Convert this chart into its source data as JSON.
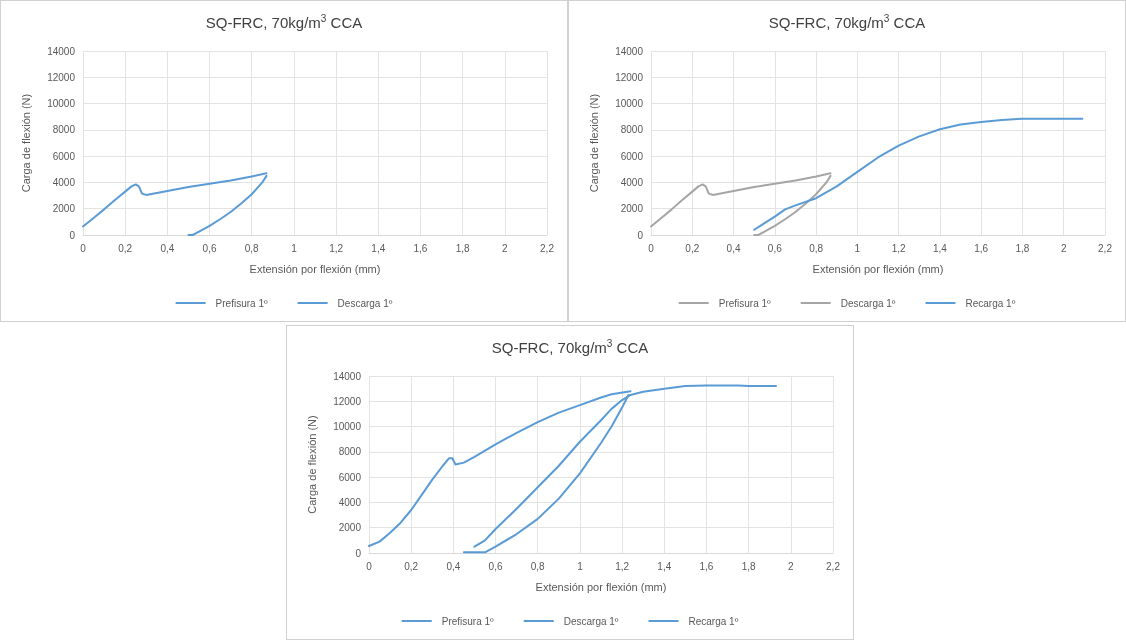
{
  "chart_data": [
    {
      "type": "line",
      "title": "SQ-FRC, 70kg/m$^{3}$ CCA",
      "xlabel": "Extensión por flexión (mm)",
      "ylabel": "Carga de flexión (N)",
      "xlim": [
        0,
        2.2
      ],
      "xticks": [
        0,
        {
          "value": 0.2,
          "label": "0,2"
        },
        {
          "value": 0.4,
          "label": "0,4"
        },
        {
          "value": 0.6,
          "label": "0,6"
        },
        {
          "value": 0.8,
          "label": "0,8"
        },
        1,
        {
          "value": 1.2,
          "label": "1,2"
        },
        {
          "value": 1.4,
          "label": "1,4"
        },
        {
          "value": 1.6,
          "label": "1,6"
        },
        {
          "value": 1.8,
          "label": "1,8"
        },
        2,
        {
          "value": 2.2,
          "label": "2,2"
        }
      ],
      "ylim": [
        0,
        14000
      ],
      "yticks": [
        0,
        2000,
        4000,
        6000,
        8000,
        10000,
        12000,
        14000
      ],
      "grid": true,
      "legend": "bottom",
      "marker": "none",
      "line_style": "solid",
      "series": [
        {
          "name": "Prefisura 1º",
          "color": "#5b9bd5",
          "x": [
            0,
            0.05,
            0.1,
            0.15,
            0.2,
            0.23,
            0.25,
            0.265,
            0.28,
            0.3,
            0.4,
            0.5,
            0.6,
            0.7,
            0.8,
            0.87
          ],
          "values": [
            650,
            1300,
            1950,
            2650,
            3300,
            3700,
            3850,
            3700,
            3150,
            3050,
            3350,
            3650,
            3900,
            4150,
            4450,
            4700
          ]
        },
        {
          "name": "Descarga 1º",
          "color": "#5b9bd5",
          "x": [
            0.87,
            0.85,
            0.8,
            0.75,
            0.7,
            0.65,
            0.6,
            0.55,
            0.52,
            0.5
          ],
          "values": [
            4500,
            4000,
            3100,
            2400,
            1750,
            1200,
            700,
            250,
            0,
            0
          ]
        }
      ]
    },
    {
      "type": "line",
      "title": "SQ-FRC, 70kg/m$^{3}$ CCA",
      "xlabel": "Extensión por flexión (mm)",
      "ylabel": "Carga de flexión (N)",
      "xlim": [
        0,
        2.2
      ],
      "xticks": [
        0,
        {
          "value": 0.2,
          "label": "0,2"
        },
        {
          "value": 0.4,
          "label": "0,4"
        },
        {
          "value": 0.6,
          "label": "0,6"
        },
        {
          "value": 0.8,
          "label": "0,8"
        },
        1,
        {
          "value": 1.2,
          "label": "1,2"
        },
        {
          "value": 1.4,
          "label": "1,4"
        },
        {
          "value": 1.6,
          "label": "1,6"
        },
        {
          "value": 1.8,
          "label": "1,8"
        },
        2,
        {
          "value": 2.2,
          "label": "2,2"
        }
      ],
      "ylim": [
        0,
        14000
      ],
      "yticks": [
        0,
        2000,
        4000,
        6000,
        8000,
        10000,
        12000,
        14000
      ],
      "grid": true,
      "legend": "bottom",
      "marker": "none",
      "line_style": "solid",
      "series": [
        {
          "name": "Prefisura 1º",
          "color": "#a5a5a5",
          "x": [
            0,
            0.05,
            0.1,
            0.15,
            0.2,
            0.23,
            0.25,
            0.265,
            0.28,
            0.3,
            0.4,
            0.5,
            0.6,
            0.7,
            0.8,
            0.87
          ],
          "values": [
            650,
            1300,
            1950,
            2650,
            3300,
            3700,
            3850,
            3700,
            3150,
            3050,
            3350,
            3650,
            3900,
            4150,
            4450,
            4700
          ]
        },
        {
          "name": "Descarga 1º",
          "color": "#a5a5a5",
          "x": [
            0.87,
            0.85,
            0.8,
            0.75,
            0.7,
            0.65,
            0.6,
            0.55,
            0.52,
            0.5
          ],
          "values": [
            4500,
            4000,
            3100,
            2400,
            1750,
            1200,
            700,
            250,
            0,
            0
          ]
        },
        {
          "name": "Recarga 1º",
          "color": "#5b9bd5",
          "x": [
            0.5,
            0.55,
            0.6,
            0.65,
            0.7,
            0.8,
            0.9,
            1.0,
            1.1,
            1.2,
            1.3,
            1.4,
            1.5,
            1.6,
            1.7,
            1.8,
            2.0,
            2.09
          ],
          "values": [
            400,
            900,
            1400,
            1950,
            2250,
            2800,
            3700,
            4800,
            5900,
            6800,
            7500,
            8050,
            8400,
            8600,
            8750,
            8850,
            8850,
            8850
          ]
        }
      ]
    },
    {
      "type": "line",
      "title": "SQ-FRC, 70kg/m$^{3}$ CCA",
      "xlabel": "Extensión por flexión (mm)",
      "ylabel": "Carga de flexión (N)",
      "xlim": [
        0,
        2.2
      ],
      "xticks": [
        0,
        {
          "value": 0.2,
          "label": "0,2"
        },
        {
          "value": 0.4,
          "label": "0,4"
        },
        {
          "value": 0.6,
          "label": "0,6"
        },
        {
          "value": 0.8,
          "label": "0,8"
        },
        1,
        {
          "value": 1.2,
          "label": "1,2"
        },
        {
          "value": 1.4,
          "label": "1,4"
        },
        {
          "value": 1.6,
          "label": "1,6"
        },
        {
          "value": 1.8,
          "label": "1,8"
        },
        2,
        {
          "value": 2.2,
          "label": "2,2"
        }
      ],
      "ylim": [
        0,
        14000
      ],
      "yticks": [
        0,
        2000,
        4000,
        6000,
        8000,
        10000,
        12000,
        14000
      ],
      "grid": true,
      "legend": "bottom",
      "marker": "none",
      "line_style": "solid",
      "series": [
        {
          "name": "Prefisura 1º",
          "color": "#5b9bd5",
          "x": [
            0,
            0.05,
            0.1,
            0.15,
            0.2,
            0.25,
            0.3,
            0.35,
            0.38,
            0.395,
            0.41,
            0.45,
            0.5,
            0.6,
            0.7,
            0.8,
            0.9,
            1.0,
            1.1,
            1.15,
            1.24
          ],
          "values": [
            550,
            900,
            1600,
            2400,
            3400,
            4600,
            5800,
            6900,
            7500,
            7500,
            7000,
            7150,
            7600,
            8600,
            9500,
            10350,
            11100,
            11700,
            12300,
            12550,
            12800
          ]
        },
        {
          "name": "Descarga 1º",
          "color": "#5b9bd5",
          "x": [
            1.23,
            1.2,
            1.15,
            1.1,
            1.0,
            0.9,
            0.8,
            0.7,
            0.6,
            0.55,
            0.45
          ],
          "values": [
            12500,
            11500,
            10000,
            8700,
            6300,
            4300,
            2700,
            1500,
            500,
            50,
            50
          ]
        },
        {
          "name": "Recarga 1º",
          "color": "#5b9bd5",
          "x": [
            0.5,
            0.55,
            0.6,
            0.7,
            0.8,
            0.9,
            1.0,
            1.1,
            1.15,
            1.2,
            1.24,
            1.3,
            1.4,
            1.5,
            1.6,
            1.75,
            1.8,
            1.93
          ],
          "values": [
            500,
            1000,
            1900,
            3500,
            5200,
            6900,
            8800,
            10500,
            11400,
            12100,
            12500,
            12750,
            13000,
            13200,
            13250,
            13250,
            13200,
            13200
          ]
        }
      ]
    }
  ]
}
